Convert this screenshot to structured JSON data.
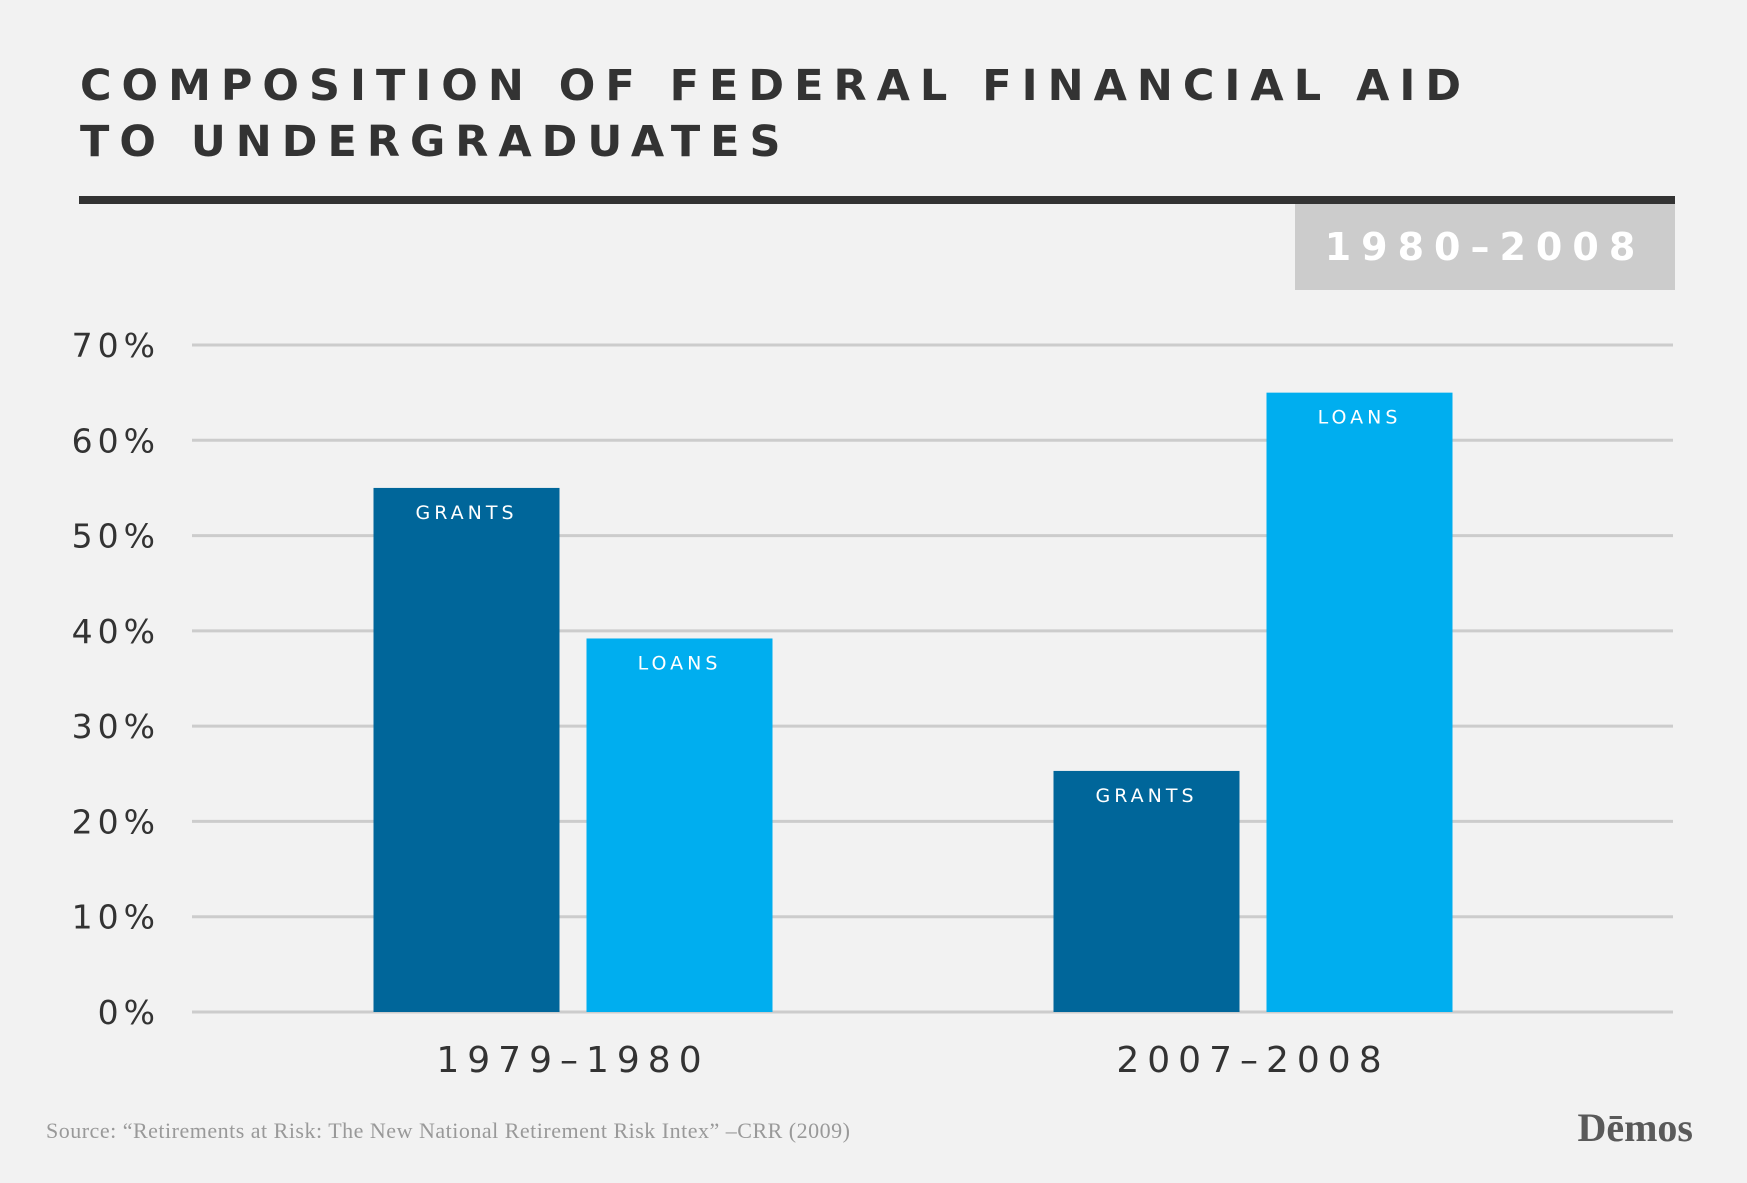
{
  "header": {
    "title": "COMPOSITION OF FEDERAL FINANCIAL AID TO UNDERGRADUATES",
    "period_badge": "1980–2008"
  },
  "footer": {
    "source": "Source: “Retirements at Risk: The New National Retirement Risk Intex” –CRR (2009)",
    "logo": "Dēmos"
  },
  "colors": {
    "grants": "#00669a",
    "loans": "#00aeef",
    "grid": "#cccccc",
    "text": "#333333"
  },
  "chart_data": {
    "type": "bar",
    "categories": [
      "1979–1980",
      "2007–2008"
    ],
    "series": [
      {
        "name": "GRANTS",
        "values": [
          55,
          25.3
        ]
      },
      {
        "name": "LOANS",
        "values": [
          39.2,
          65
        ]
      }
    ],
    "ylim": [
      0,
      70
    ],
    "yticks": [
      0,
      10,
      20,
      30,
      40,
      50,
      60,
      70
    ],
    "ytick_labels": [
      "0%",
      "10%",
      "20%",
      "30%",
      "40%",
      "50%",
      "60%",
      "70%"
    ],
    "grid": true,
    "labels_inside_bars": true
  }
}
